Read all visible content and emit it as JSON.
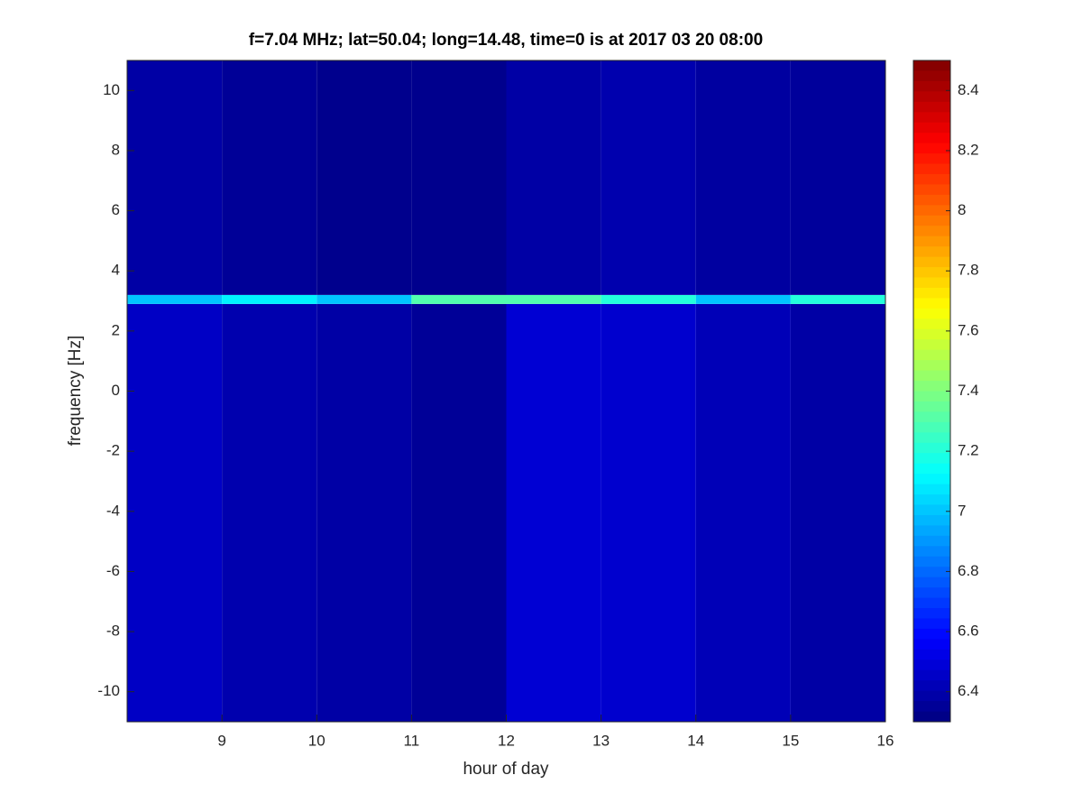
{
  "chart_data": {
    "type": "heatmap",
    "title": "f=7.04 MHz;  lat=50.04; long=14.48, time=0 is at 2017 03 20 08:00",
    "xlabel": "hour of day",
    "ylabel": "frequency [Hz]",
    "xlim": [
      8,
      16
    ],
    "xticks": [
      9,
      10,
      11,
      12,
      13,
      14,
      15,
      16
    ],
    "ylim": [
      -11,
      11
    ],
    "yticks": [
      -10,
      -8,
      -6,
      -4,
      -2,
      0,
      2,
      4,
      6,
      8,
      10
    ],
    "colormap": "jet",
    "clim": [
      6.3,
      8.5
    ],
    "cticks": [
      6.4,
      6.6,
      6.8,
      7,
      7.2,
      7.4,
      7.6,
      7.8,
      8,
      8.2,
      8.4
    ],
    "x": [
      8,
      9,
      10,
      11,
      12,
      13,
      14,
      15,
      16
    ],
    "y": [
      -11,
      2.9,
      3.2,
      11
    ],
    "z": [
      [
        6.45,
        6.4,
        6.38,
        6.35,
        6.48,
        6.47,
        6.42,
        6.38
      ],
      [
        7.0,
        7.1,
        7.0,
        7.3,
        7.3,
        7.2,
        7.0,
        7.2
      ],
      [
        6.38,
        6.35,
        6.33,
        6.33,
        6.38,
        6.4,
        6.37,
        6.36
      ]
    ]
  }
}
